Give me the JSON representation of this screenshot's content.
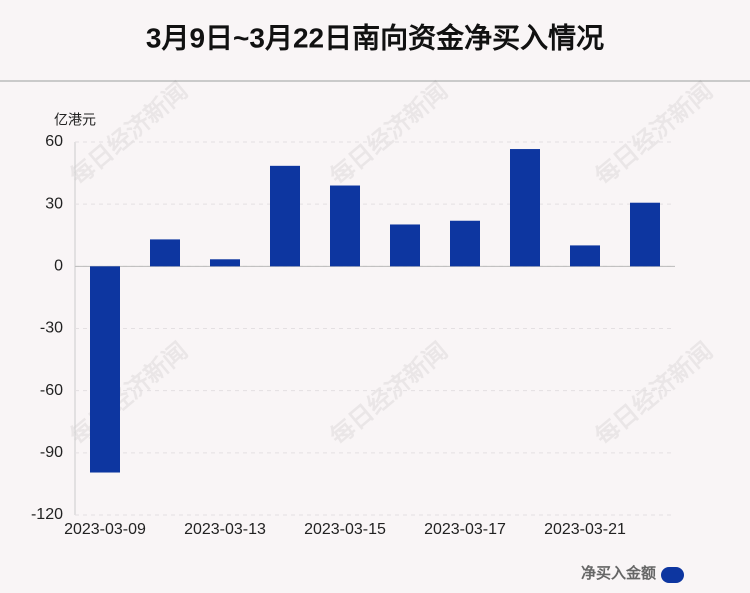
{
  "chart_data": {
    "type": "bar",
    "title": "3月9日~3月22日南向资金净买入情况",
    "y_label": "亿港元",
    "categories": [
      "2023-03-09",
      null,
      "2023-03-13",
      null,
      "2023-03-15",
      null,
      "2023-03-17",
      null,
      "2023-03-21",
      null
    ],
    "series": [
      {
        "name": "净买入金额",
        "color": "#0d36a0",
        "values": [
          -99.5,
          13,
          3.4,
          48.5,
          39,
          20.2,
          22,
          56.6,
          10.1,
          30.7
        ]
      }
    ],
    "ylim": [
      -120,
      60
    ],
    "yticks": [
      -120,
      -90,
      -60,
      -30,
      0,
      30,
      60
    ],
    "grid": true,
    "watermark": "每日经济新闻"
  }
}
